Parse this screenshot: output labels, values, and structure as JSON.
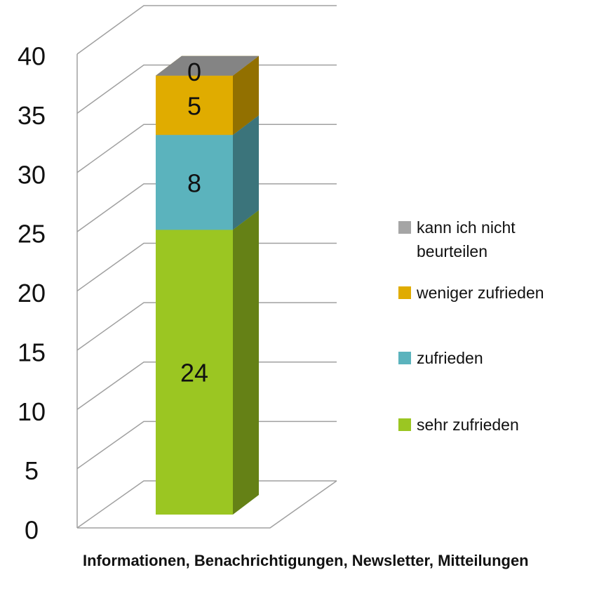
{
  "chart_data": {
    "type": "bar",
    "stacked": true,
    "categories": [
      "Informationen, Benachrichtigungen, Newsletter, Mitteilungen"
    ],
    "series": [
      {
        "name": "sehr zufrieden",
        "color": "#9bc622",
        "values": [
          24
        ]
      },
      {
        "name": "zufrieden",
        "color": "#5bb3bd",
        "values": [
          8
        ]
      },
      {
        "name": "weniger zufrieden",
        "color": "#e0ac00",
        "values": [
          5
        ]
      },
      {
        "name": "kann ich nicht beurteilen",
        "color": "#a5a5a5",
        "values": [
          0
        ]
      }
    ],
    "ylim": [
      0,
      40
    ],
    "yticks": [
      0,
      5,
      10,
      15,
      20,
      25,
      30,
      35,
      40
    ],
    "grid": true,
    "legend": "right"
  }
}
